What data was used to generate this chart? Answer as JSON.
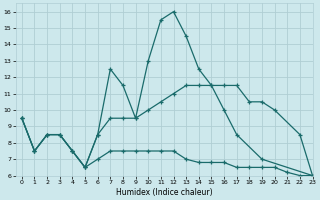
{
  "xlabel": "Humidex (Indice chaleur)",
  "xlim": [
    -0.5,
    23
  ],
  "ylim": [
    6,
    16.5
  ],
  "xticks": [
    0,
    1,
    2,
    3,
    4,
    5,
    6,
    7,
    8,
    9,
    10,
    11,
    12,
    13,
    14,
    15,
    16,
    17,
    18,
    19,
    20,
    21,
    22,
    23
  ],
  "yticks": [
    6,
    7,
    8,
    9,
    10,
    11,
    12,
    13,
    14,
    15,
    16
  ],
  "bg_color": "#cde8ec",
  "grid_color": "#b0ced4",
  "line_color": "#1a6b6b",
  "line1_x": [
    0,
    1,
    2,
    3,
    4,
    5,
    6,
    7,
    8,
    9,
    10,
    11,
    12,
    13,
    14,
    15,
    16,
    17,
    19,
    23
  ],
  "line1_y": [
    9.5,
    7.5,
    8.5,
    8.5,
    7.5,
    6.5,
    8.5,
    12.5,
    11.5,
    9.5,
    13.0,
    15.5,
    16.0,
    14.5,
    12.5,
    11.5,
    10.0,
    8.5,
    7.0,
    6.0
  ],
  "line2_x": [
    0,
    1,
    2,
    3,
    4,
    5,
    6,
    7,
    8,
    9,
    10,
    11,
    12,
    13,
    14,
    15,
    16,
    17,
    18,
    19,
    20,
    22,
    23
  ],
  "line2_y": [
    9.5,
    7.5,
    8.5,
    8.5,
    7.5,
    6.5,
    8.5,
    9.5,
    9.5,
    9.5,
    10.0,
    10.5,
    11.0,
    11.5,
    11.5,
    11.5,
    11.5,
    11.5,
    10.5,
    10.5,
    10.0,
    8.5,
    6.0
  ],
  "line3_x": [
    0,
    1,
    2,
    3,
    4,
    5,
    6,
    7,
    8,
    9,
    10,
    11,
    12,
    13,
    14,
    15,
    16,
    17,
    18,
    19,
    20,
    21,
    22,
    23
  ],
  "line3_y": [
    9.5,
    7.5,
    8.5,
    8.5,
    7.5,
    6.5,
    7.0,
    7.5,
    7.5,
    7.5,
    7.5,
    7.5,
    7.5,
    7.0,
    6.8,
    6.8,
    6.8,
    6.5,
    6.5,
    6.5,
    6.5,
    6.2,
    6.0,
    6.0
  ]
}
